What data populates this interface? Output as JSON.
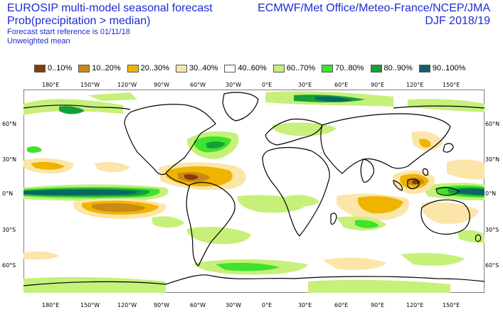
{
  "header": {
    "title": "EUROSIP multi-model seasonal forecast",
    "subtitle": "Prob(precipitation > median)",
    "start_reference": "Forecast start reference is 01/11/18",
    "mean_type": "Unweighted mean",
    "providers": "ECMWF/Met Office/Meteo-France/NCEP/JMA",
    "season": "DJF 2018/19"
  },
  "legend": [
    {
      "label": "0..10%",
      "color": "#8a3a0a"
    },
    {
      "label": "10..20%",
      "color": "#c98a16"
    },
    {
      "label": "20..30%",
      "color": "#f0b400"
    },
    {
      "label": "30..40%",
      "color": "#fbe5a8"
    },
    {
      "label": "40..60%",
      "color": "#ffffff"
    },
    {
      "label": "60..70%",
      "color": "#c6f07a"
    },
    {
      "label": "70..80%",
      "color": "#3fe22c"
    },
    {
      "label": "80..90%",
      "color": "#13a03a"
    },
    {
      "label": "90..100%",
      "color": "#0b6468"
    }
  ],
  "axes": {
    "top_lon_labels": [
      "180°E",
      "150°W",
      "120°W",
      "90°W",
      "60°W",
      "30°W",
      "0°E",
      "30°E",
      "60°E",
      "90°E",
      "120°E",
      "150°E"
    ],
    "bottom_lon_labels": [
      "180°E",
      "150°W",
      "120°W",
      "90°W",
      "60°W",
      "30°W",
      "0°E",
      "30°E",
      "60°E",
      "90°E",
      "120°E",
      "150°E"
    ],
    "left_lat_labels": [
      "60°N",
      "30°N",
      "0°N",
      "30°S",
      "60°S"
    ],
    "right_lat_labels": [
      "60°N",
      "30°N",
      "0°N",
      "30°S",
      "60°S"
    ]
  },
  "map_data": {
    "regions": [
      {
        "cat": "90..100%",
        "desc": "equatorial central Pacific"
      },
      {
        "cat": "90..100%",
        "desc": "western Pacific equator"
      },
      {
        "cat": "80..90%",
        "desc": "North Atlantic"
      },
      {
        "cat": "80..90%",
        "desc": "Arctic Eurasia"
      },
      {
        "cat": "80..90%",
        "desc": "North Pacific"
      },
      {
        "cat": "0..10%",
        "desc": "Caribbean / northern South America"
      },
      {
        "cat": "0..10%",
        "desc": "Philippines / Maritime continent"
      },
      {
        "cat": "10..20%",
        "desc": "South Pacific band"
      },
      {
        "cat": "20..30%",
        "desc": "northern Indian Ocean / Australia"
      }
    ]
  }
}
